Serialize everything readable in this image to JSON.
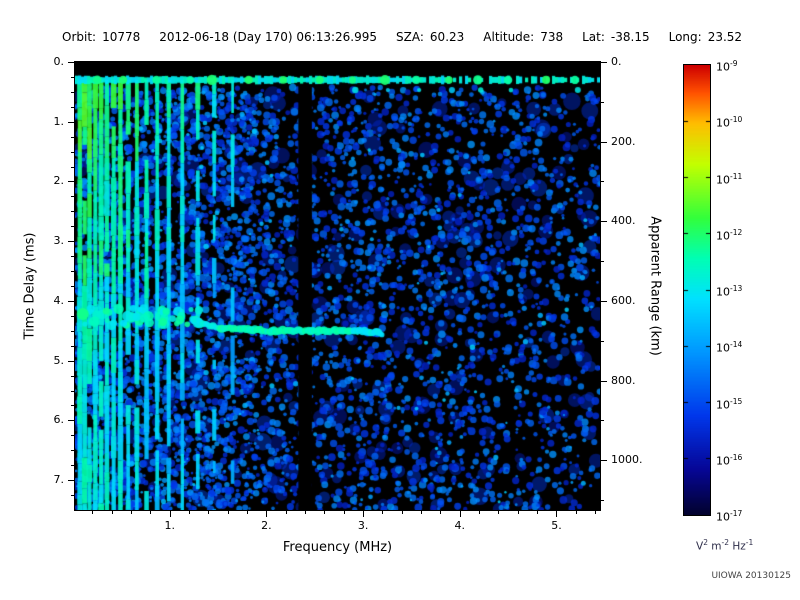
{
  "header": {
    "fields": [
      {
        "label": "Orbit:",
        "value": "10778"
      },
      {
        "label": "",
        "value": "2012-06-18 (Day 170) 06:13:26.995"
      },
      {
        "label": "SZA:",
        "value": "60.23"
      },
      {
        "label": "Altitude:",
        "value": "738"
      },
      {
        "label": "Lat:",
        "value": "-38.15"
      },
      {
        "label": "Long:",
        "value": "23.52"
      }
    ]
  },
  "credit": "UIOWA 20130125",
  "chart_data": {
    "type": "heatmap",
    "title": "",
    "xlabel": "Frequency (MHz)",
    "ylabel_left": "Time Delay (ms)",
    "ylabel_right": "Apparent Range (km)",
    "x_range": [
      0.02,
      5.45
    ],
    "y_range": [
      0,
      7.5
    ],
    "right_axis_range_km": [
      0,
      1125
    ],
    "km_per_ms": 150,
    "x_ticks": [
      1,
      2,
      3,
      4,
      5
    ],
    "x_tick_labels": [
      "1.",
      "2.",
      "3.",
      "4.",
      "5."
    ],
    "x_minor_step": 0.2,
    "y_ticks": [
      0,
      1,
      2,
      3,
      4,
      5,
      6,
      7
    ],
    "y_tick_labels": [
      "0.",
      "1.",
      "2.",
      "3.",
      "4.",
      "5.",
      "6.",
      "7."
    ],
    "y_minor_step": 0.25,
    "right_ticks_km": [
      0,
      200,
      400,
      600,
      800,
      1000
    ],
    "right_tick_labels": [
      "0.",
      "200.",
      "400.",
      "600.",
      "800.",
      "1000."
    ],
    "right_minor_step_km": 100,
    "background_color": "#000000",
    "colorbar": {
      "tick_exponents": [
        -9,
        -10,
        -11,
        -12,
        -13,
        -14,
        -15,
        -16,
        -17
      ],
      "units_parts": [
        {
          "base": "V",
          "exp": "2"
        },
        {
          "base": " m",
          "exp": "-2"
        },
        {
          "base": " Hz",
          "exp": "-1"
        }
      ]
    },
    "colormap_anchors": [
      [
        0,
        [
          2,
          2,
          46
        ]
      ],
      [
        0.1,
        [
          6,
          6,
          150
        ]
      ],
      [
        0.22,
        [
          0,
          55,
          235
        ]
      ],
      [
        0.36,
        [
          0,
          150,
          255
        ]
      ],
      [
        0.48,
        [
          0,
          225,
          255
        ]
      ],
      [
        0.57,
        [
          0,
          255,
          180
        ]
      ],
      [
        0.66,
        [
          50,
          255,
          60
        ]
      ],
      [
        0.78,
        [
          195,
          255,
          0
        ]
      ],
      [
        0.87,
        [
          255,
          190,
          0
        ]
      ],
      [
        0.94,
        [
          255,
          80,
          0
        ]
      ],
      [
        1,
        [
          205,
          0,
          0
        ]
      ]
    ],
    "features": {
      "surface_band_ms": 0.3,
      "quiet_band_mhz": [
        2.33,
        2.47
      ],
      "noise_dense_below_mhz": 1.9,
      "plasma_harmonics": [
        {
          "f": 0.07,
          "v": 0.58
        },
        {
          "f": 0.12,
          "v": 0.6
        },
        {
          "f": 0.17,
          "v": 0.6
        },
        {
          "f": 0.23,
          "v": 0.58
        },
        {
          "f": 0.29,
          "v": 0.59
        },
        {
          "f": 0.35,
          "v": 0.57
        },
        {
          "f": 0.42,
          "v": 0.57
        },
        {
          "f": 0.49,
          "v": 0.57
        },
        {
          "f": 0.57,
          "v": 0.55
        },
        {
          "f": 0.66,
          "v": 0.54
        },
        {
          "f": 0.76,
          "v": 0.53
        },
        {
          "f": 0.87,
          "v": 0.52
        },
        {
          "f": 0.99,
          "v": 0.51
        },
        {
          "f": 1.13,
          "v": 0.5
        },
        {
          "f": 1.29,
          "v": 0.52
        },
        {
          "f": 1.46,
          "v": 0.47
        },
        {
          "f": 1.65,
          "v": 0.45
        }
      ],
      "echo_trace": {
        "x_mhz": [
          0.1,
          0.5,
          0.9,
          1.2,
          1.5,
          2.0,
          2.5,
          3.0,
          3.2
        ],
        "t_ms": [
          4.25,
          4.2,
          4.25,
          4.3,
          4.45,
          4.5,
          4.5,
          4.5,
          4.55
        ]
      }
    }
  }
}
